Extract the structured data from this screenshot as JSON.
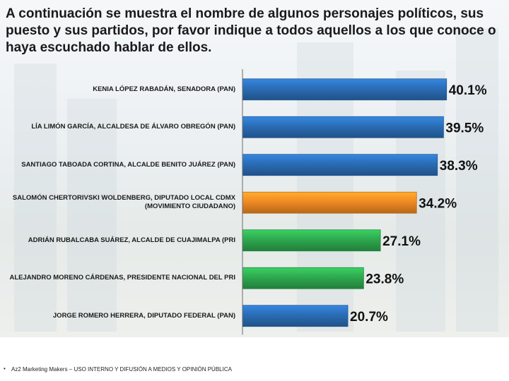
{
  "title": "A continuación se muestra el nombre de algunos personajes políticos, sus puesto y sus partidos, por favor indique a todos aquellos a los que conoce o haya escuchado hablar de ellos.",
  "footer": {
    "bullet": "•",
    "text": "Az2 Marketing Makers – USO INTERNO Y DIFUSIÓN A MEDIOS Y OPINIÓN PÚBLICA"
  },
  "colors": {
    "PAN": "#2a6db5",
    "MC": "#f08a24",
    "PRI": "#2ea84f"
  },
  "chart_data": {
    "type": "bar",
    "orientation": "horizontal",
    "categories": [
      "KENIA LÓPEZ RABADÁN, SENADORA (PAN)",
      "LÍA LIMÓN GARCÍA, ALCALDESA DE ÁLVARO OBREGÓN (PAN)",
      "SANTIAGO TABOADA CORTINA, ALCALDE BENITO JUÁREZ (PAN)",
      "SALOMÓN CHERTORIVSKI WOLDENBERG, DIPUTADO LOCAL CDMX (MOVIMIENTO CIUDADANO)",
      "ADRIÁN RUBALCABA SUÁREZ, ALCALDE DE CUAJIMALPA (PRI",
      "ALEJANDRO MORENO CÁRDENAS, PRESIDENTE NACIONAL DEL PRI",
      "JORGE ROMERO HERRERA, DIPUTADO FEDERAL (PAN)"
    ],
    "values": [
      40.1,
      39.5,
      38.3,
      34.2,
      27.1,
      23.8,
      20.7
    ],
    "value_labels": [
      "40.1%",
      "39.5%",
      "38.3%",
      "34.2%",
      "27.1%",
      "23.8%",
      "20.7%"
    ],
    "bar_colors": [
      "PAN",
      "PAN",
      "PAN",
      "MC",
      "PRI",
      "PRI",
      "PAN"
    ],
    "xlim": [
      0,
      50
    ],
    "grid": false
  }
}
